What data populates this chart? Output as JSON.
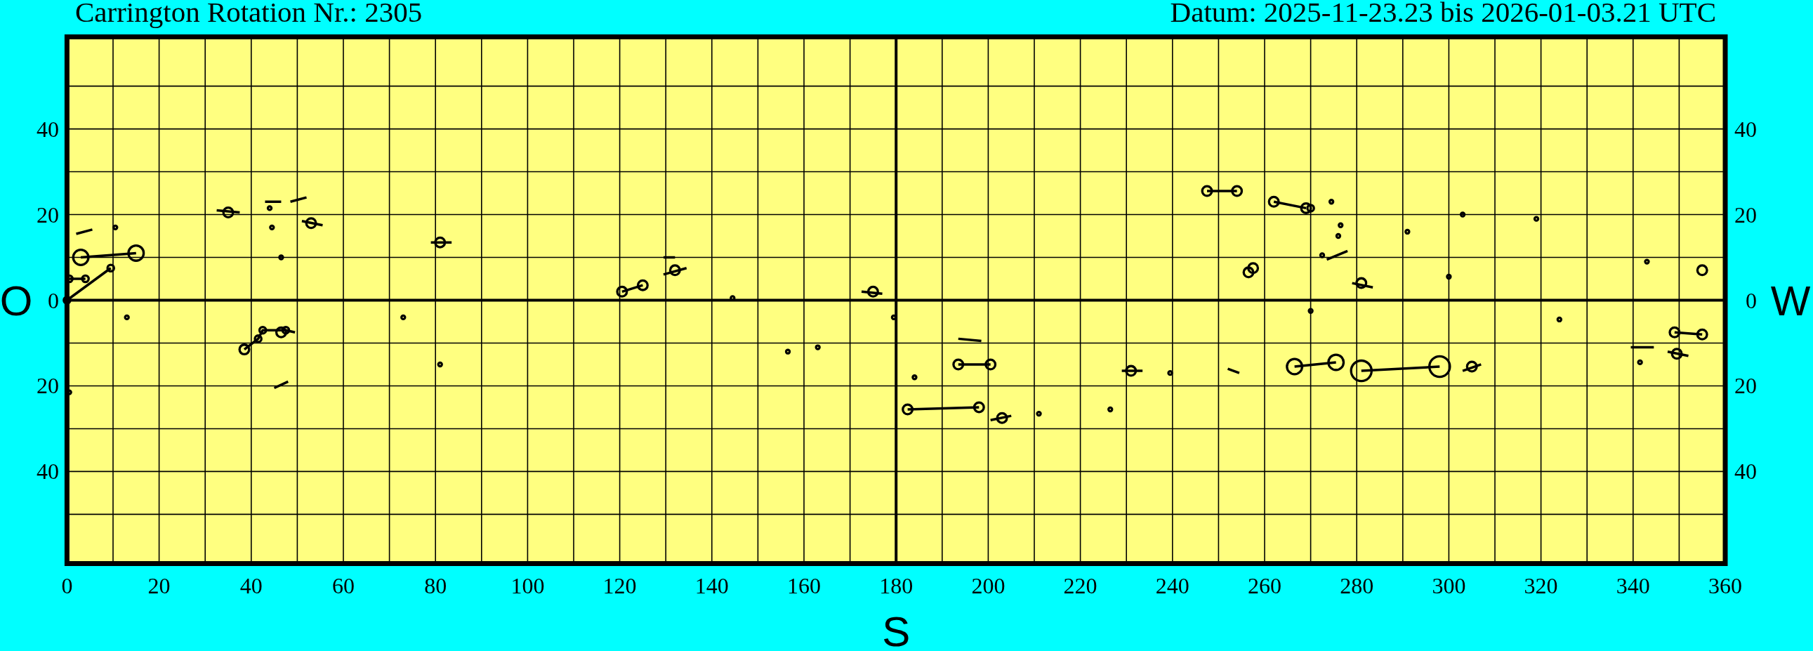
{
  "chart_data": {
    "type": "bubble",
    "title": "Carrington Rotation Nr.: 2305",
    "subtitle": "Datum: 2025-11-23.23 bis 2026-01-03.21 UTC",
    "xlabel": "S",
    "ylabel": "O",
    "y2label": "W",
    "xlim": [
      0,
      360
    ],
    "xticks": [
      0,
      {
        "value": 10,
        "label": null
      },
      20,
      {
        "value": 30,
        "label": null
      },
      40,
      {
        "value": 50,
        "label": null
      },
      60,
      {
        "value": 70,
        "label": null
      },
      80,
      {
        "value": 90,
        "label": null
      },
      100,
      {
        "value": 110,
        "label": null
      },
      120,
      {
        "value": 130,
        "label": null
      },
      140,
      {
        "value": 150,
        "label": null
      },
      160,
      {
        "value": 170,
        "label": null
      },
      180,
      {
        "value": 190,
        "label": null
      },
      200,
      {
        "value": 210,
        "label": null
      },
      220,
      {
        "value": 230,
        "label": null
      },
      240,
      {
        "value": 250,
        "label": null
      },
      260,
      {
        "value": 270,
        "label": null
      },
      280,
      {
        "value": 290,
        "label": null
      },
      300,
      {
        "value": 310,
        "label": null
      },
      320,
      {
        "value": 330,
        "label": null
      },
      340,
      {
        "value": 350,
        "label": null
      },
      360
    ],
    "ylim": [
      -61.5,
      61.5
    ],
    "yticks": [
      {
        "value": 50,
        "label": null
      },
      40,
      {
        "value": 30,
        "label": null
      },
      20,
      {
        "value": 10,
        "label": null
      },
      0,
      {
        "value": -10,
        "label": null
      },
      {
        "value": -20,
        "label": "20"
      },
      {
        "value": -30,
        "label": null
      },
      {
        "value": -40,
        "label": "40"
      },
      {
        "value": -50,
        "label": null
      }
    ],
    "y2lim": [
      -61.5,
      61.5
    ],
    "y2ticks": [
      40,
      20,
      0,
      {
        "value": -20,
        "label": "20"
      },
      {
        "value": -40,
        "label": "40"
      }
    ],
    "grid": true,
    "series": [
      {
        "type": "line",
        "color": "#000000",
        "x": [
          0,
          9.5,
          null,
          3,
          15,
          null,
          0.5,
          4,
          null,
          2,
          5.5,
          null,
          32.5,
          37.5,
          null,
          43,
          46.5,
          null,
          48.5,
          52,
          null,
          51,
          55.5,
          null,
          79,
          83.5,
          null,
          38.5,
          41.5,
          42.5,
          47.5,
          49.5,
          null,
          45,
          48,
          null,
          120.5,
          125,
          null,
          129.5,
          134.5,
          null,
          129.5,
          132,
          null,
          172.5,
          177,
          null,
          193.5,
          200.5,
          null,
          193.5,
          198.5,
          null,
          182.5,
          198,
          null,
          200.5,
          205,
          null,
          229,
          233.5,
          null,
          247.5,
          254,
          null,
          262,
          269,
          null,
          273.5,
          278,
          null,
          279,
          283.5,
          null,
          252,
          254.5,
          null,
          266.5,
          275.5,
          null,
          281,
          298,
          null,
          303,
          307,
          null,
          339.5,
          344.5,
          null,
          349,
          355,
          null,
          347.5,
          352
        ],
        "values": [
          0,
          7.5,
          null,
          10,
          11,
          null,
          5,
          5,
          null,
          15.5,
          16.5,
          null,
          21,
          20.5,
          null,
          23,
          23,
          null,
          23,
          24,
          null,
          18.5,
          17.5,
          null,
          13.5,
          13.5,
          null,
          -11.5,
          -9,
          -7,
          -7,
          -7.5,
          null,
          -20.5,
          -19,
          null,
          2,
          3.5,
          null,
          6,
          7.5,
          null,
          10,
          10,
          null,
          2,
          1.5,
          null,
          -15,
          -15,
          null,
          -9,
          -9.5,
          null,
          -25.5,
          -25,
          null,
          -28,
          -27,
          null,
          -16.5,
          -16.5,
          null,
          25.5,
          25.5,
          null,
          23,
          21.5,
          null,
          9.5,
          11.5,
          null,
          4,
          3,
          null,
          -16,
          -17,
          null,
          -15.5,
          -14.5,
          null,
          -16.5,
          -15.5,
          null,
          -16.5,
          -15,
          null,
          -11,
          -11,
          null,
          -7.5,
          -8,
          null,
          -12,
          -13
        ]
      },
      {
        "color": "#000000",
        "x": [
          0,
          3,
          15,
          0.5,
          4,
          9.5,
          10.5,
          35,
          44,
          44.5,
          53,
          46.5,
          81,
          13,
          0.5,
          38.5,
          41.5,
          42.5,
          46.5,
          47.5,
          73,
          81,
          120.5,
          125,
          132,
          144.5,
          175,
          179.5,
          156.5,
          163,
          193.5,
          200.5,
          184,
          182.5,
          198,
          203,
          211,
          226.5,
          231,
          239.5,
          247.5,
          254,
          262,
          269,
          270,
          274.5,
          276.5,
          276,
          272.5,
          256.5,
          257.5,
          281,
          291,
          303,
          300,
          319,
          343,
          355,
          270,
          266.5,
          275.5,
          281,
          298,
          305,
          324,
          341.5,
          349,
          355,
          349.5
        ],
        "values": [
          0,
          10,
          11,
          5,
          5,
          7.5,
          17,
          20.5,
          21.5,
          17,
          18,
          10,
          13.5,
          -4,
          -21.5,
          -11.5,
          -9,
          -7,
          -7.5,
          -7,
          -4,
          -15,
          2,
          3.5,
          7,
          0.5,
          2,
          -4,
          -12,
          -11,
          -15,
          -15,
          -18,
          -25.5,
          -25,
          -27.5,
          -26.5,
          -25.5,
          -16.5,
          -17,
          25.5,
          25.5,
          23,
          21.5,
          21.5,
          23,
          17.5,
          15,
          10.5,
          6.5,
          7.5,
          4,
          16,
          20,
          5.5,
          19,
          9,
          7,
          -2.5,
          -15.5,
          -14.5,
          -16.5,
          -15.5,
          -15.5,
          -4.5,
          -14.5,
          -7.5,
          -8,
          -12.5
        ],
        "sizes": [
          0.1,
          0.55,
          0.55,
          0.1,
          0.1,
          0.1,
          0.03,
          0.22,
          0.03,
          0.03,
          0.22,
          0.03,
          0.22,
          0.03,
          0.03,
          0.22,
          0.1,
          0.1,
          0.22,
          0.1,
          0.03,
          0.03,
          0.22,
          0.22,
          0.22,
          0.03,
          0.22,
          0.03,
          0.03,
          0.03,
          0.22,
          0.22,
          0.03,
          0.22,
          0.22,
          0.22,
          0.03,
          0.03,
          0.22,
          0.03,
          0.22,
          0.22,
          0.22,
          0.22,
          0.1,
          0.03,
          0.03,
          0.03,
          0.03,
          0.22,
          0.22,
          0.22,
          0.03,
          0.03,
          0.03,
          0.03,
          0.03,
          0.22,
          0.03,
          0.55,
          0.55,
          1,
          1,
          0.22,
          0.03,
          0.03,
          0.22,
          0.22,
          0.22
        ]
      }
    ]
  }
}
